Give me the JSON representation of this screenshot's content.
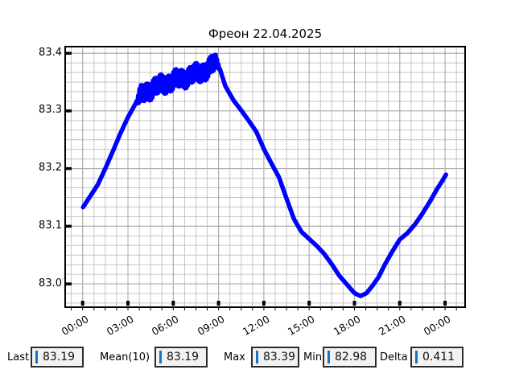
{
  "chart_data": {
    "type": "line",
    "title": "Фреон 22.04.2025",
    "x_tick_labels": [
      "00:00",
      "03:00",
      "06:00",
      "09:00",
      "12:00",
      "15:00",
      "18:00",
      "21:00",
      "00:00"
    ],
    "x_tick_hours": [
      0,
      3,
      6,
      9,
      12,
      15,
      18,
      21,
      24
    ],
    "x_range_hours": [
      -1.156,
      25.326
    ],
    "y_tick_labels": [
      "83.0",
      "83.1",
      "83.2",
      "83.3",
      "83.4"
    ],
    "y_tick_values": [
      83.0,
      83.1,
      83.2,
      83.3,
      83.4
    ],
    "y_range": [
      82.9596,
      83.4115
    ],
    "x_minor_per_major": 4,
    "y_minor_per_major": 6,
    "grid": true,
    "legend": "none",
    "line_color": "#0000ff",
    "line_width": 5.5,
    "sample_step": 0.045,
    "trend_points": [
      [
        0.03,
        83.133
      ],
      [
        0.5,
        83.152
      ],
      [
        1,
        83.172
      ],
      [
        1.5,
        83.2
      ],
      [
        2,
        83.23
      ],
      [
        2.5,
        83.261
      ],
      [
        3,
        83.289
      ],
      [
        3.3,
        83.303
      ],
      [
        3.55,
        83.315
      ],
      [
        4,
        83.33
      ],
      [
        4.5,
        83.338
      ],
      [
        5,
        83.343
      ],
      [
        5.5,
        83.348
      ],
      [
        6,
        83.352
      ],
      [
        6.5,
        83.356
      ],
      [
        7,
        83.36
      ],
      [
        7.5,
        83.364
      ],
      [
        8,
        83.369
      ],
      [
        8.5,
        83.376
      ],
      [
        8.8,
        83.386
      ],
      [
        9.1,
        83.372
      ],
      [
        9.45,
        83.343
      ],
      [
        10,
        83.318
      ],
      [
        10.5,
        83.301
      ],
      [
        11,
        83.283
      ],
      [
        11.5,
        83.264
      ],
      [
        12,
        83.234
      ],
      [
        12.5,
        83.209
      ],
      [
        13,
        83.185
      ],
      [
        13.5,
        83.148
      ],
      [
        14,
        83.112
      ],
      [
        14.5,
        83.09
      ],
      [
        15,
        83.078
      ],
      [
        15.5,
        83.066
      ],
      [
        16,
        83.052
      ],
      [
        16.5,
        83.034
      ],
      [
        17,
        83.014
      ],
      [
        17.5,
        82.999
      ],
      [
        18,
        82.984
      ],
      [
        18.4,
        82.979
      ],
      [
        18.8,
        82.984
      ],
      [
        19.2,
        82.997
      ],
      [
        19.6,
        83.012
      ],
      [
        20,
        83.033
      ],
      [
        20.5,
        83.056
      ],
      [
        21,
        83.077
      ],
      [
        21.5,
        83.088
      ],
      [
        22,
        83.103
      ],
      [
        22.5,
        83.122
      ],
      [
        23,
        83.143
      ],
      [
        23.5,
        83.166
      ],
      [
        23.8,
        83.178
      ],
      [
        24.07,
        83.19
      ]
    ],
    "noise_band": {
      "t_start": 3.55,
      "t_end": 9.1,
      "amplitude": 0.0155
    }
  },
  "stats": [
    {
      "label": "Last",
      "value": "83.19"
    },
    {
      "label": "Mean(10)",
      "value": "83.19"
    },
    {
      "label": "Max",
      "value": "83.39"
    },
    {
      "label": "Min",
      "value": "82.98"
    },
    {
      "label": "Delta",
      "value": "0.411"
    }
  ],
  "colors": {
    "line": "#0000ff",
    "grid_minor": "#c4c4c4",
    "grid_major": "#aaaaaa",
    "axis": "#000000",
    "field_background": "#f2f2f2",
    "field_border": "#2b2b2b",
    "caret": "#1673c8",
    "background": "#ffffff"
  }
}
